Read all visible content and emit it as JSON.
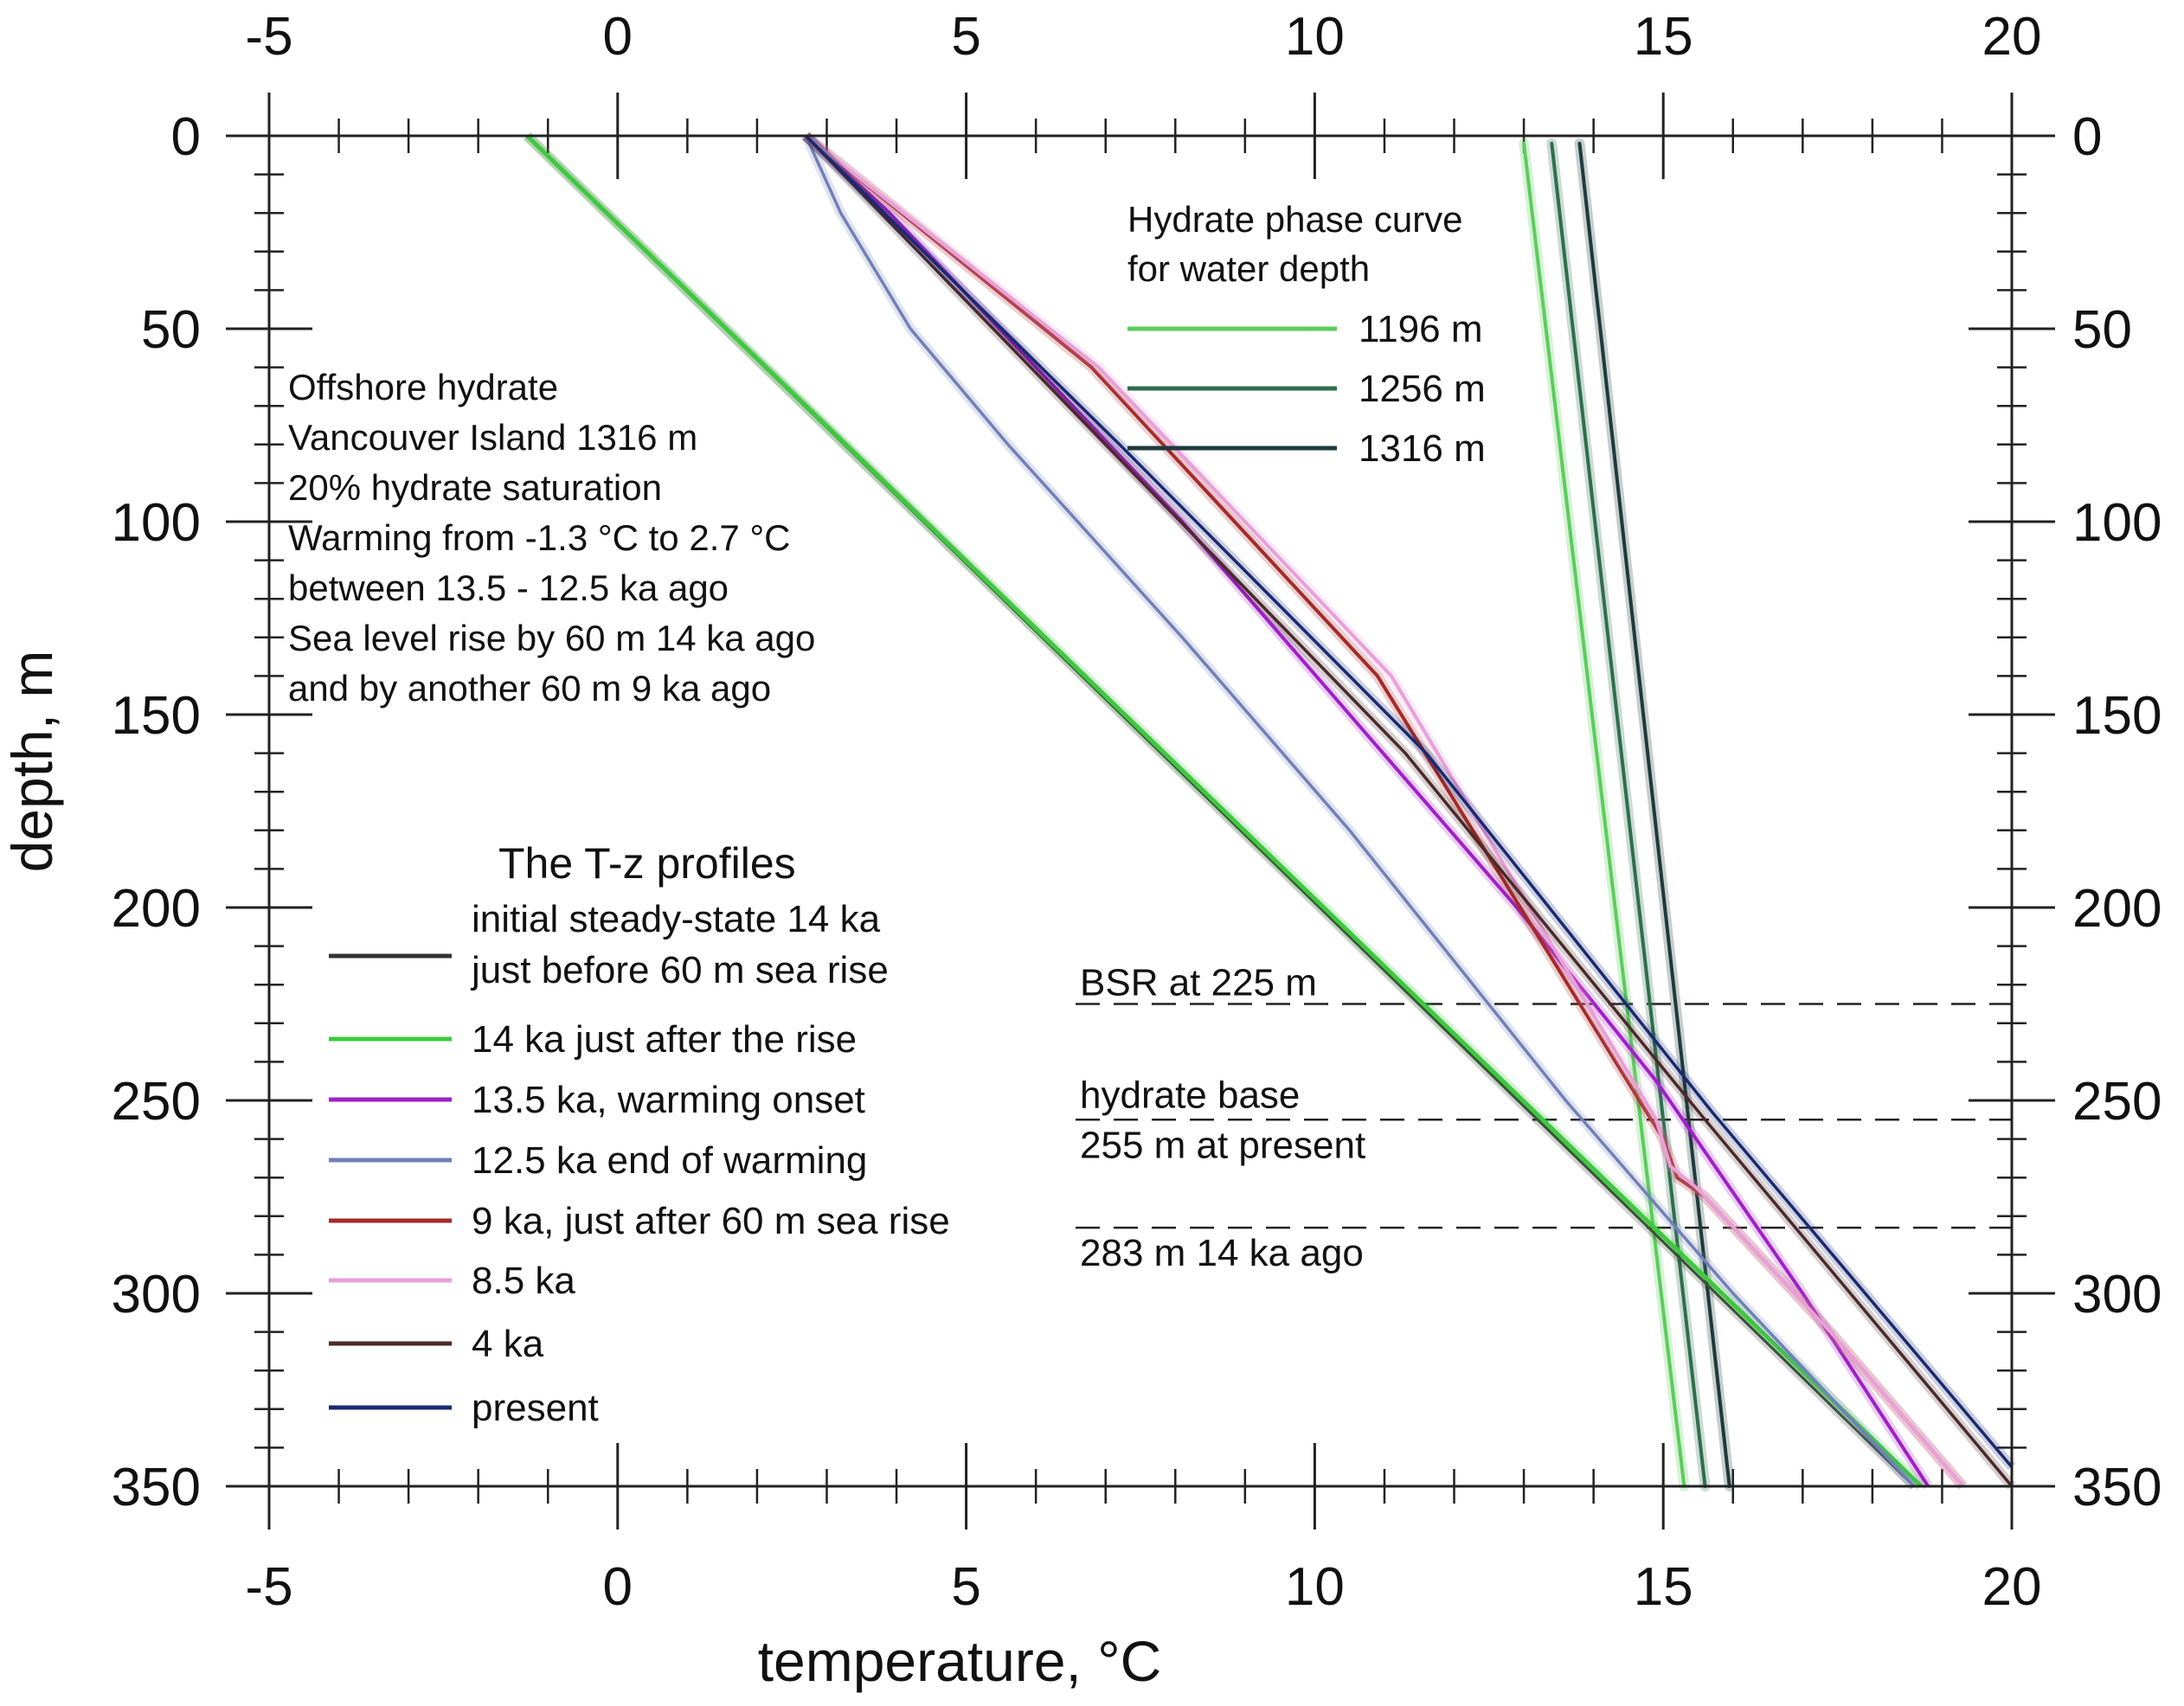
{
  "chart_data": {
    "type": "line",
    "xlabel": "temperature, °C",
    "ylabel": "depth, m",
    "xlim": [
      -5,
      20
    ],
    "ylim": [
      0,
      350
    ],
    "y_inverted": true,
    "x_major_ticks": [
      -5,
      0,
      5,
      10,
      15,
      20
    ],
    "x_tick_labels": [
      "-5",
      "0",
      "5",
      "10",
      "15",
      "20"
    ],
    "x_minor_step": 1,
    "y_major_ticks": [
      0,
      50,
      100,
      150,
      200,
      250,
      300,
      350
    ],
    "y_tick_labels": [
      "0",
      "50",
      "100",
      "150",
      "200",
      "250",
      "300",
      "350"
    ],
    "y_minor_step": 10,
    "grid": false,
    "annotation_lines": [
      "Offshore hydrate",
      "Vancouver Island 1316 m",
      "20% hydrate saturation",
      "Warming from -1.3 °C to 2.7 °C",
      "between 13.5 - 12.5 ka ago",
      "Sea level rise by 60 m 14 ka ago",
      "and by another 60 m 9 ka ago"
    ],
    "profiles_legend_title": "The T-z profiles",
    "profiles": [
      {
        "name": "initial steady-state 14 ka just before 60 m sea rise",
        "label_lines": [
          "initial steady-state 14 ka",
          "just before 60 m sea rise"
        ],
        "color": "#333333",
        "x": [
          -1.3,
          18.6
        ],
        "y": [
          0,
          350
        ]
      },
      {
        "name": "14 ka just after the rise",
        "label_lines": [
          "14 ka just after the rise"
        ],
        "color": "#3fc83f",
        "x": [
          -1.3,
          18.7
        ],
        "y": [
          0,
          350
        ]
      },
      {
        "name": "13.5 ka, warming onset",
        "label_lines": [
          "13.5 ka, warming onset"
        ],
        "color": "#a020c8",
        "x": [
          2.7,
          3.9,
          6.0,
          8.1,
          10.5,
          12.9,
          14.9,
          17.0,
          18.8
        ],
        "y": [
          0,
          20,
          60,
          100,
          150,
          200,
          245,
          300,
          350
        ]
      },
      {
        "name": "12.5 ka end of warming",
        "label_lines": [
          "12.5 ka end of warming"
        ],
        "color": "#7080b8",
        "x": [
          2.7,
          3.2,
          4.2,
          5.6,
          8.1,
          10.5,
          13.6,
          16.0,
          18.6
        ],
        "y": [
          0,
          20,
          50,
          80,
          130,
          180,
          250,
          300,
          350
        ]
      },
      {
        "name": "9 ka, just after 60 m sea rise",
        "label_lines": [
          "9 ka, just after 60 m sea rise"
        ],
        "color": "#a52a2a",
        "x": [
          2.7,
          6.8,
          10.9,
          15.0,
          15.2,
          15.6,
          17.4,
          19.3
        ],
        "y": [
          0,
          60,
          140,
          260,
          270,
          275,
          310,
          350
        ]
      },
      {
        "name": "8.5 ka",
        "label_lines": [
          "8.5 ka"
        ],
        "color": "#e8a0d8",
        "x": [
          2.7,
          6.9,
          11.1,
          14.9,
          15.1,
          15.5,
          17.4,
          19.3
        ],
        "y": [
          0,
          60,
          140,
          255,
          267,
          273,
          310,
          350
        ]
      },
      {
        "name": "4 ka",
        "label_lines": [
          "4 ka"
        ],
        "color": "#4a2a2a",
        "x": [
          2.7,
          7.0,
          11.3,
          15.6,
          20.0
        ],
        "y": [
          0,
          80,
          160,
          255,
          350
        ]
      },
      {
        "name": "present",
        "label_lines": [
          "present"
        ],
        "color": "#1a2a70",
        "x": [
          2.7,
          7.2,
          11.6,
          15.7,
          20.0
        ],
        "y": [
          0,
          80,
          160,
          253,
          345
        ]
      }
    ],
    "phase_legend_title": [
      "Hydrate phase curve",
      "for water depth"
    ],
    "phase_curves": [
      {
        "name": "1196 m",
        "color": "#5ccc5c",
        "x": [
          13.0,
          15.3
        ],
        "y": [
          2,
          350
        ]
      },
      {
        "name": "1256 m",
        "color": "#2e6e4e",
        "x": [
          13.4,
          15.6
        ],
        "y": [
          2,
          350
        ]
      },
      {
        "name": "1316 m",
        "color": "#1e3a3a",
        "x": [
          13.8,
          15.95
        ],
        "y": [
          2,
          350
        ]
      }
    ],
    "reference_lines": [
      {
        "label_lines": [
          "BSR at 225 m"
        ],
        "y": 225
      },
      {
        "label_lines": [
          "hydrate base",
          "255 m at present"
        ],
        "y": 255
      },
      {
        "label_lines": [
          "283 m 14 ka ago"
        ],
        "y": 283
      }
    ]
  }
}
